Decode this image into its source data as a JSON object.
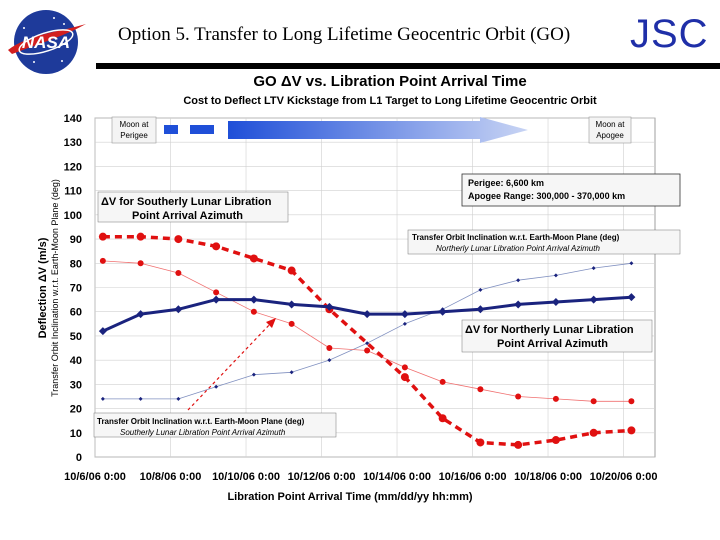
{
  "slide": {
    "title": "Option 5. Transfer to Long Lifetime Geocentric Orbit (GO)",
    "org_mark": "JSC",
    "logo_text": "NASA"
  },
  "colors": {
    "blue_series": "#1a237e",
    "red_series": "#e01010",
    "light_red": "#f07070",
    "light_blue": "#8090c0",
    "arrow_blue": "#3a5fd0",
    "jsc_blue": "#1f2fa8"
  },
  "chart_data": {
    "type": "line",
    "title": "GO ΔV vs. Libration Point Arrival Time",
    "subtitle": "Cost to Deflect LTV Kickstage from L1 Target to Long Lifetime Geocentric Orbit",
    "xlabel": "Libration Point Arrival Time  (mm/dd/yy   hh:mm)",
    "ylabel": "Deflection ΔV  (m/s)",
    "ylabel2": "Transfer Orbit Inclination w.r.t. Earth-Moon Plane (deg)",
    "ylim": [
      0,
      140
    ],
    "yticks": [
      0,
      10,
      20,
      30,
      40,
      50,
      60,
      70,
      80,
      90,
      100,
      110,
      120,
      130,
      140
    ],
    "x_range": [
      "2006-10-06T00:00",
      "2006-10-20T20:00"
    ],
    "x_tick_labels": [
      "10/6/06 0:00",
      "10/8/06 0:00",
      "10/10/06 0:00",
      "10/12/06 0:00",
      "10/14/06 0:00",
      "10/16/06 0:00",
      "10/18/06 0:00",
      "10/20/06 0:00"
    ],
    "x_tick_dates": [
      "2006-10-06T00:00",
      "2006-10-08T00:00",
      "2006-10-10T00:00",
      "2006-10-12T00:00",
      "2006-10-14T00:00",
      "2006-10-16T00:00",
      "2006-10-18T00:00",
      "2006-10-20T00:00"
    ],
    "grid": true,
    "series": [
      {
        "name": "ΔV for Northerly Lunar Libration Point Arrival Azimuth",
        "color": "#1a237e",
        "style": "solid-thick",
        "marker": "diamond",
        "points": [
          [
            "2006-10-06T05:00",
            52
          ],
          [
            "2006-10-07T05:00",
            59
          ],
          [
            "2006-10-08T05:00",
            61
          ],
          [
            "2006-10-09T05:00",
            65
          ],
          [
            "2006-10-10T05:00",
            65
          ],
          [
            "2006-10-11T05:00",
            63
          ],
          [
            "2006-10-12T05:00",
            62
          ],
          [
            "2006-10-13T05:00",
            59
          ],
          [
            "2006-10-14T05:00",
            59
          ],
          [
            "2006-10-15T05:00",
            60
          ],
          [
            "2006-10-16T05:00",
            61
          ],
          [
            "2006-10-17T05:00",
            63
          ],
          [
            "2006-10-18T05:00",
            64
          ],
          [
            "2006-10-19T05:00",
            65
          ],
          [
            "2006-10-20T05:00",
            66
          ]
        ]
      },
      {
        "name": "ΔV for Southerly Lunar Libration Point Arrival Azimuth",
        "color": "#e01010",
        "style": "dashed-thick",
        "marker": "circle",
        "points": [
          [
            "2006-10-06T05:00",
            91
          ],
          [
            "2006-10-07T05:00",
            91
          ],
          [
            "2006-10-08T05:00",
            90
          ],
          [
            "2006-10-09T05:00",
            87
          ],
          [
            "2006-10-10T05:00",
            82
          ],
          [
            "2006-10-11T05:00",
            77
          ],
          [
            "2006-10-12T05:00",
            61
          ],
          [
            "2006-10-14T05:00",
            33
          ],
          [
            "2006-10-15T05:00",
            16
          ],
          [
            "2006-10-16T05:00",
            6
          ],
          [
            "2006-10-17T05:00",
            5
          ],
          [
            "2006-10-18T05:00",
            7
          ],
          [
            "2006-10-19T05:00",
            10
          ],
          [
            "2006-10-20T05:00",
            11
          ]
        ]
      },
      {
        "name": "Transfer Orbit Inclination w.r.t. Earth-Moon Plane (deg) Northerly Lunar Libration Point Arrival Azimuth",
        "color": "#8090c0",
        "style": "thin",
        "marker": "small-diamond",
        "points": [
          [
            "2006-10-06T05:00",
            24
          ],
          [
            "2006-10-07T05:00",
            24
          ],
          [
            "2006-10-08T05:00",
            24
          ],
          [
            "2006-10-09T05:00",
            29
          ],
          [
            "2006-10-10T05:00",
            34
          ],
          [
            "2006-10-11T05:00",
            35
          ],
          [
            "2006-10-12T05:00",
            40
          ],
          [
            "2006-10-13T05:00",
            47
          ],
          [
            "2006-10-14T05:00",
            55
          ],
          [
            "2006-10-15T05:00",
            61
          ],
          [
            "2006-10-16T05:00",
            69
          ],
          [
            "2006-10-17T05:00",
            73
          ],
          [
            "2006-10-18T05:00",
            75
          ],
          [
            "2006-10-19T05:00",
            78
          ],
          [
            "2006-10-20T05:00",
            80
          ]
        ]
      },
      {
        "name": "Transfer Orbit Inclination w.r.t. Earth-Moon Plane (deg) Southerly Lunar Libration Point Arrival Azimuth",
        "color": "#f07070",
        "style": "thin",
        "marker": "small-circle",
        "points": [
          [
            "2006-10-06T05:00",
            81
          ],
          [
            "2006-10-07T05:00",
            80
          ],
          [
            "2006-10-08T05:00",
            76
          ],
          [
            "2006-10-09T05:00",
            68
          ],
          [
            "2006-10-10T05:00",
            60
          ],
          [
            "2006-10-11T05:00",
            55
          ],
          [
            "2006-10-12T05:00",
            45
          ],
          [
            "2006-10-13T05:00",
            44
          ],
          [
            "2006-10-14T05:00",
            37
          ],
          [
            "2006-10-15T05:00",
            31
          ],
          [
            "2006-10-16T05:00",
            28
          ],
          [
            "2006-10-17T05:00",
            25
          ],
          [
            "2006-10-18T05:00",
            24
          ],
          [
            "2006-10-19T05:00",
            23
          ],
          [
            "2006-10-20T05:00",
            23
          ]
        ]
      }
    ],
    "annotations": {
      "moon_perigee": [
        "Moon at",
        "Perigee"
      ],
      "moon_apogee": [
        "Moon at",
        "Apogee"
      ],
      "orbit_info": [
        "Perigee:  6,600 km",
        "Apogee Range:  300,000 - 370,000 km"
      ],
      "north_incl_label": [
        "Transfer Orbit Inclination w.r.t. Earth-Moon Plane (deg)",
        "Northerly Lunar Libration Point Arrival Azimuth"
      ],
      "south_incl_label": [
        "Transfer Orbit Inclination w.r.t. Earth-Moon Plane (deg)",
        "Southerly Lunar Libration Point Arrival Azimuth"
      ],
      "south_dv_label": [
        "ΔV for Southerly Lunar Libration",
        "Point Arrival Azimuth"
      ],
      "north_dv_label": [
        "ΔV for Northerly Lunar Libration",
        "Point Arrival Azimuth"
      ]
    }
  }
}
